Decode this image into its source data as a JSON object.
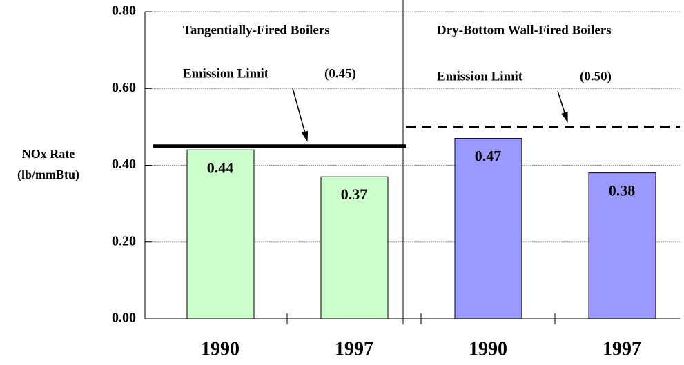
{
  "chart_data": {
    "type": "bar",
    "categories": [
      "1990",
      "1997",
      "1990",
      "1997"
    ],
    "values": [
      0.44,
      0.37,
      0.47,
      0.38
    ],
    "colors": [
      "#ccffcc",
      "#ccffcc",
      "#9999ff",
      "#9999ff"
    ],
    "ylabel": [
      "NOx Rate",
      "(lb/mmBtu)"
    ],
    "ylim": [
      0,
      0.8
    ],
    "yticks": [
      {
        "value": 0,
        "label": "0.00"
      },
      {
        "value": 0.2,
        "label": "0.20"
      },
      {
        "value": 0.4,
        "label": "0.40"
      },
      {
        "value": 0.6,
        "label": "0.60"
      },
      {
        "value": 0.8,
        "label": "0.80"
      }
    ],
    "grid": true,
    "groups": [
      {
        "title": "Tangentially-Fired Boilers",
        "limit": {
          "text": "Emission Limit",
          "value": 0.45,
          "label": "(0.45)",
          "style": "solid"
        }
      },
      {
        "title": "Dry-Bottom Wall-Fired Boilers",
        "limit": {
          "text": "Emission Limit",
          "value": 0.5,
          "label": "(0.50)",
          "style": "dashed"
        }
      }
    ]
  }
}
